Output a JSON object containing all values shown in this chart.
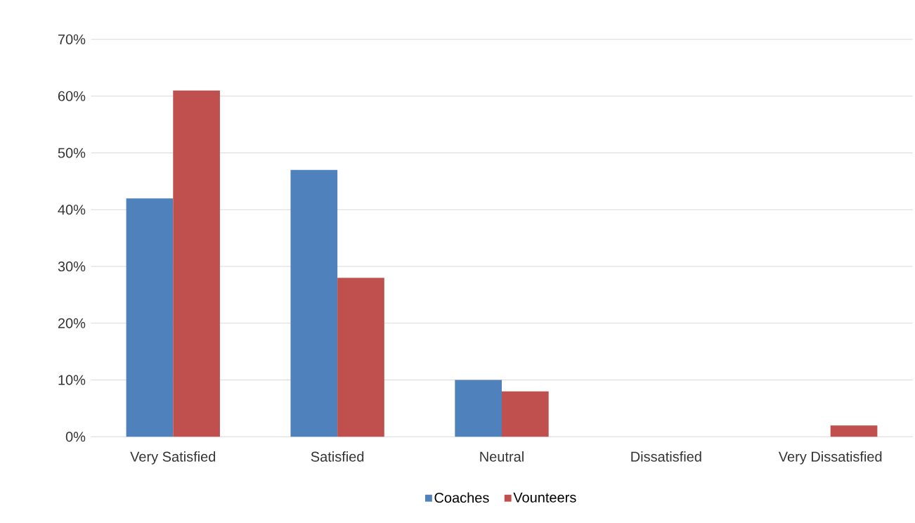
{
  "chart_data": {
    "type": "bar",
    "categories": [
      "Very Satisfied",
      "Satisfied",
      "Neutral",
      "Dissatisfied",
      "Very Dissatisfied"
    ],
    "series": [
      {
        "name": "Coaches",
        "color": "#4f81bd",
        "values": [
          42,
          47,
          10,
          0,
          0
        ]
      },
      {
        "name": "Vounteers",
        "color": "#c0504d",
        "values": [
          61,
          28,
          8,
          0,
          2
        ]
      }
    ],
    "ylim": [
      0,
      70
    ],
    "yticks": [
      {
        "value": 0,
        "label": "0%"
      },
      {
        "value": 10,
        "label": "10%"
      },
      {
        "value": 20,
        "label": "20%"
      },
      {
        "value": 30,
        "label": "30%"
      },
      {
        "value": 40,
        "label": "40%"
      },
      {
        "value": 50,
        "label": "50%"
      },
      {
        "value": 60,
        "label": "60%"
      },
      {
        "value": 70,
        "label": "70%"
      }
    ],
    "grid": "y",
    "legend": "bottom"
  }
}
